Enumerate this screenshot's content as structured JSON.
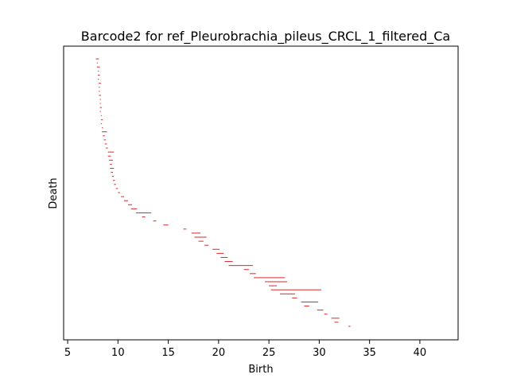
{
  "chart_data": {
    "type": "barcode",
    "title": "Barcode2 for ref_Pleurobrachia_pileus_CRCL_1_filtered_Ca",
    "xlabel": "Birth",
    "ylabel": "Death",
    "xlim": [
      4.6,
      43.8
    ],
    "x_ticks": [
      5,
      10,
      15,
      20,
      25,
      30,
      35,
      40
    ],
    "x_tick_labels": [
      "5",
      "10",
      "15",
      "20",
      "25",
      "30",
      "35",
      "40"
    ],
    "y_ticks_visible": false,
    "grid": false,
    "bar_color": "#d62728",
    "bars": [
      [
        7.8,
        8.1
      ],
      [
        7.9,
        8.0
      ],
      [
        7.9,
        8.2
      ],
      [
        8.0,
        8.1
      ],
      [
        8.0,
        8.2
      ],
      [
        8.0,
        8.1
      ],
      [
        8.1,
        8.3
      ],
      [
        8.1,
        8.2
      ],
      [
        8.1,
        8.2
      ],
      [
        8.1,
        8.3
      ],
      [
        8.2,
        8.3
      ],
      [
        8.2,
        8.3
      ],
      [
        8.2,
        8.4
      ],
      [
        8.2,
        8.3
      ],
      [
        8.3,
        8.4
      ],
      [
        8.3,
        8.5
      ],
      [
        8.3,
        8.4
      ],
      [
        8.4,
        8.5
      ],
      [
        8.4,
        8.9
      ],
      [
        8.5,
        8.7
      ],
      [
        8.6,
        8.8
      ],
      [
        8.7,
        8.9
      ],
      [
        8.8,
        9.0
      ],
      [
        9.0,
        9.6
      ],
      [
        9.0,
        9.3
      ],
      [
        9.1,
        9.5
      ],
      [
        9.2,
        9.4
      ],
      [
        9.2,
        9.6
      ],
      [
        9.3,
        9.5
      ],
      [
        9.4,
        9.6
      ],
      [
        9.5,
        9.7
      ],
      [
        9.6,
        9.8
      ],
      [
        9.8,
        10.0
      ],
      [
        10.0,
        10.2
      ],
      [
        10.3,
        10.6
      ],
      [
        10.6,
        11.0
      ],
      [
        11.0,
        11.4
      ],
      [
        11.3,
        11.9
      ],
      [
        11.8,
        13.3
      ],
      [
        12.4,
        12.7
      ],
      [
        13.5,
        13.8
      ],
      [
        14.5,
        15.0
      ],
      [
        16.5,
        16.8
      ],
      [
        17.3,
        18.2
      ],
      [
        17.6,
        18.8
      ],
      [
        18.0,
        18.5
      ],
      [
        18.6,
        19.0
      ],
      [
        19.4,
        20.1
      ],
      [
        19.8,
        20.5
      ],
      [
        20.2,
        20.9
      ],
      [
        20.6,
        21.4
      ],
      [
        21.0,
        23.4
      ],
      [
        22.5,
        23.0
      ],
      [
        23.1,
        23.7
      ],
      [
        23.5,
        26.6
      ],
      [
        24.6,
        26.8
      ],
      [
        25.0,
        25.8
      ],
      [
        25.2,
        30.2
      ],
      [
        26.1,
        27.6
      ],
      [
        27.3,
        27.8
      ],
      [
        28.2,
        29.9
      ],
      [
        28.5,
        29.0
      ],
      [
        29.8,
        30.4
      ],
      [
        30.5,
        30.8
      ],
      [
        31.2,
        32.0
      ],
      [
        31.5,
        31.9
      ],
      [
        32.9,
        33.1
      ]
    ]
  }
}
